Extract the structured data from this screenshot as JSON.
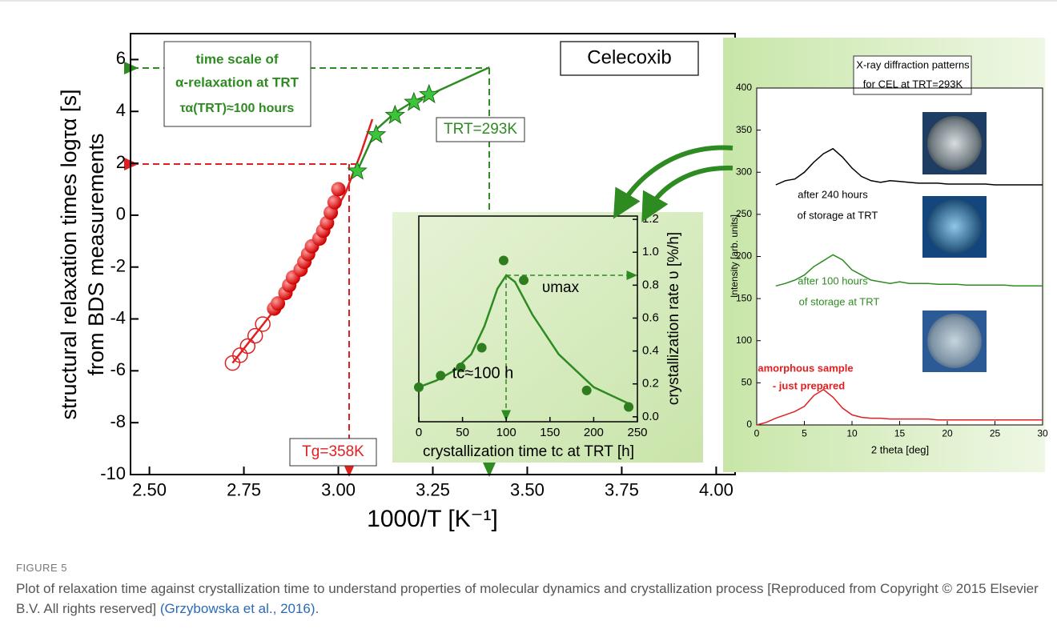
{
  "chart_data": [
    {
      "type": "scatter",
      "annotations": [
        "Celecoxib",
        "time scale of",
        "α-relaxation at TRT",
        "τα(TRT)≈100 hours",
        "TRT=293K",
        "Tg=358K"
      ],
      "xlabel": "1000/T [K⁻¹]",
      "ylabel": [
        "structural relaxation times logτα [s]",
        "from BDS measurements"
      ],
      "xlim": [
        2.45,
        4.05
      ],
      "ylim": [
        -10,
        7
      ],
      "xticks": [
        {
          "value": 2.5,
          "label": "2.50"
        },
        {
          "value": 2.75,
          "label": "2.75"
        },
        {
          "value": 3.0,
          "label": "3.00"
        },
        {
          "value": 3.25,
          "label": "3.25"
        },
        {
          "value": 3.5,
          "label": "3.50"
        },
        {
          "value": 3.75,
          "label": "3.75"
        },
        {
          "value": 4.0,
          "label": "4.00"
        }
      ],
      "yticks": [
        -10,
        -8,
        -6,
        -4,
        -2,
        0,
        2,
        4,
        6
      ],
      "series": [
        {
          "style": "line",
          "color": "#e02020",
          "x": [
            2.72,
            2.85,
            2.95,
            3.02,
            3.06,
            3.09
          ],
          "values": [
            -5.7,
            -3.3,
            -1.0,
            0.9,
            2.4,
            3.7
          ]
        },
        {
          "style": "line",
          "color": "#2e8b22",
          "x": [
            3.05,
            3.1,
            3.15,
            3.2,
            3.25,
            3.4
          ],
          "values": [
            1.7,
            3.3,
            3.95,
            4.4,
            4.7,
            5.7
          ]
        },
        {
          "marker": "open-circle",
          "color": "#e02020",
          "x": [
            2.72,
            2.74,
            2.76,
            2.78,
            2.8
          ],
          "values": [
            -5.7,
            -5.4,
            -5.05,
            -4.65,
            -4.2
          ]
        },
        {
          "marker": "circle",
          "color": "#e02020",
          "x": [
            2.83,
            2.84,
            2.86,
            2.87,
            2.88,
            2.9,
            2.91,
            2.92,
            2.93,
            2.95,
            2.96,
            2.97,
            2.98,
            2.99,
            3.0
          ],
          "values": [
            -3.6,
            -3.4,
            -3.0,
            -2.7,
            -2.4,
            -2.1,
            -1.8,
            -1.5,
            -1.2,
            -0.9,
            -0.6,
            -0.3,
            0.1,
            0.5,
            1.0
          ]
        },
        {
          "marker": "star",
          "color": "#3cc43c",
          "x": [
            3.05,
            3.1,
            3.15,
            3.2,
            3.24
          ],
          "values": [
            1.7,
            3.1,
            3.85,
            4.35,
            4.65
          ]
        }
      ]
    },
    {
      "type": "scatter",
      "annotations": [
        "υmax",
        "tc≈100 h"
      ],
      "xlabel": "crystallization time tc at TRT [h]",
      "ylabel": "crystallization rate υ [%/h]",
      "xlim": [
        0,
        250
      ],
      "ylim": [
        -0.03,
        1.22
      ],
      "xticks": [
        0,
        50,
        100,
        150,
        200,
        250
      ],
      "yticks": [
        {
          "value": 0,
          "label": "0.0"
        },
        {
          "value": 0.2,
          "label": "0.2"
        },
        {
          "value": 0.4,
          "label": "0.4"
        },
        {
          "value": 0.6,
          "label": "0.6"
        },
        {
          "value": 0.8,
          "label": "0.8"
        },
        {
          "value": 1.0,
          "label": "1.0"
        },
        {
          "value": 1.2,
          "label": "1.2"
        }
      ],
      "series": [
        {
          "style": "line",
          "color": "#2e8b22",
          "x": [
            0,
            20,
            40,
            60,
            75,
            90,
            100,
            110,
            130,
            160,
            200,
            240
          ],
          "values": [
            0.18,
            0.22,
            0.28,
            0.38,
            0.55,
            0.78,
            0.86,
            0.82,
            0.62,
            0.38,
            0.18,
            0.08
          ]
        },
        {
          "marker": "circle",
          "color": "#2e7d1e",
          "x": [
            0,
            25,
            48,
            72,
            97,
            120,
            192,
            240
          ],
          "values": [
            0.18,
            0.25,
            0.3,
            0.42,
            0.95,
            0.83,
            0.16,
            0.06
          ]
        }
      ]
    },
    {
      "type": "line",
      "title": [
        "X-ray diffraction patterns",
        "for CEL at TRT=293K"
      ],
      "annotations": [
        "after 240 hours",
        "of storage at TRT",
        "after 100 hours",
        "of storage at TRT",
        "amorphous sample",
        "- just prepared"
      ],
      "xlabel": "2 theta [deg]",
      "ylabel": "Intensity [arb. units]",
      "xlim": [
        0,
        30
      ],
      "ylim": [
        0,
        400
      ],
      "xticks": [
        0,
        5,
        10,
        15,
        20,
        25,
        30
      ],
      "yticks": [
        0,
        50,
        100,
        150,
        200,
        250,
        300,
        350,
        400
      ],
      "x": [
        0,
        1,
        2,
        3,
        4,
        5,
        6,
        7,
        8,
        9,
        10,
        11,
        12,
        13,
        14,
        15,
        16,
        17,
        18,
        19,
        20,
        21,
        22,
        23,
        24,
        25,
        26,
        27,
        28,
        29,
        30
      ],
      "series": [
        {
          "style": "line",
          "color": "#000000",
          "values": [
            null,
            null,
            285,
            290,
            292,
            300,
            312,
            322,
            328,
            318,
            305,
            295,
            290,
            288,
            290,
            289,
            288,
            287,
            287,
            287,
            286,
            286,
            286,
            286,
            286,
            285,
            285,
            285,
            285,
            285,
            285
          ]
        },
        {
          "style": "line",
          "color": "#2e8b22",
          "values": [
            null,
            null,
            165,
            168,
            172,
            178,
            188,
            195,
            202,
            196,
            184,
            178,
            172,
            170,
            168,
            170,
            168,
            168,
            168,
            167,
            167,
            167,
            166,
            166,
            166,
            166,
            166,
            165,
            165,
            165,
            165
          ]
        },
        {
          "style": "line",
          "color": "#e02020",
          "values": [
            0,
            3,
            8,
            12,
            16,
            22,
            35,
            42,
            33,
            20,
            12,
            9,
            8,
            8,
            7,
            7,
            7,
            7,
            7,
            6,
            6,
            6,
            6,
            6,
            6,
            6,
            6,
            6,
            6,
            6,
            6
          ]
        }
      ]
    }
  ],
  "caption": {
    "label": "FIGURE 5",
    "text": "Plot of relaxation time against crystallization time to understand properties of molecular dynamics and crystallization process [Reproduced from Copyright © 2015 Elsevier B.V. All rights reserved]",
    "citation": "(Grzybowska et al., 2016)",
    "end": "."
  }
}
